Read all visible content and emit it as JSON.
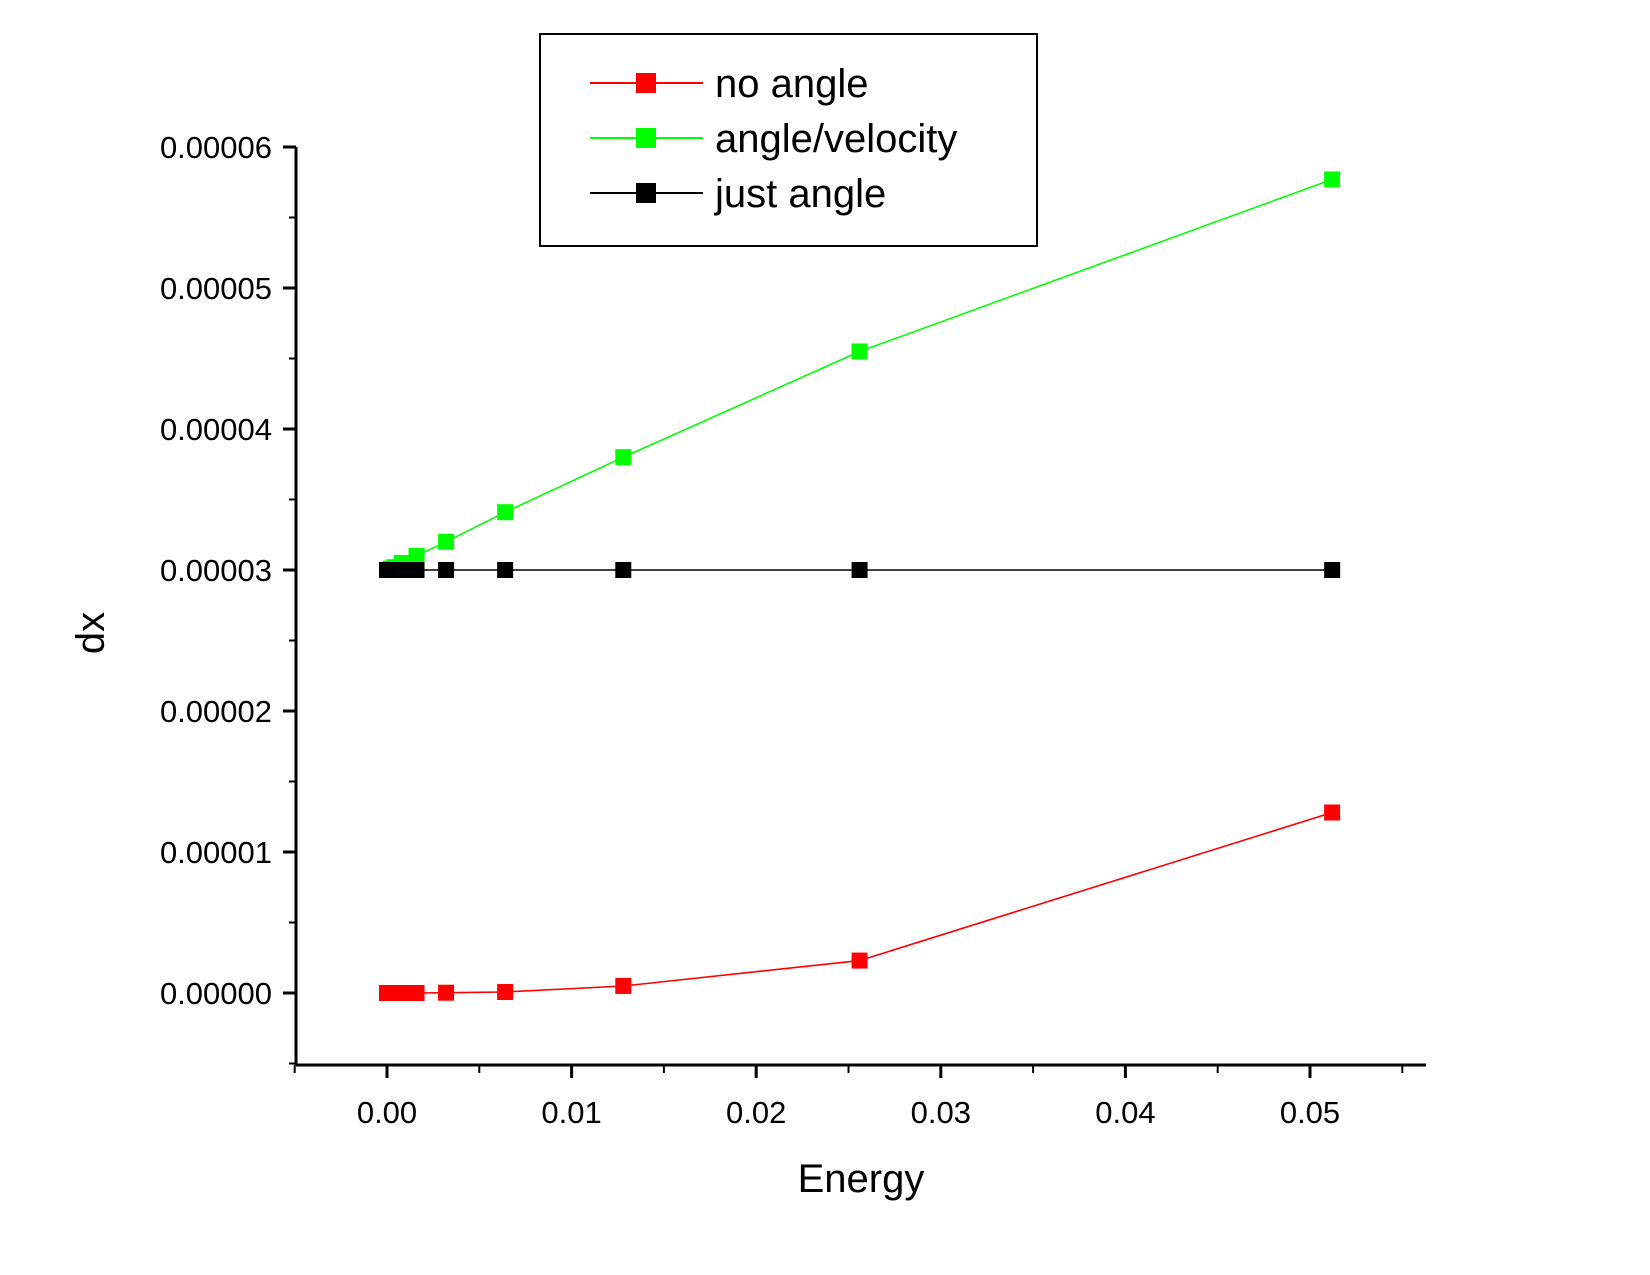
{
  "chart_data": {
    "type": "line",
    "title": "",
    "xlabel": "Energy",
    "ylabel": "dx",
    "xlim": [
      -0.005,
      0.057
    ],
    "ylim": [
      -5e-06,
      6e-05
    ],
    "x_ticks": [
      "0.00",
      "0.01",
      "0.02",
      "0.03",
      "0.04",
      "0.05"
    ],
    "y_ticks": [
      "0.00000",
      "0.00001",
      "0.00002",
      "0.00003",
      "0.00004",
      "0.00005",
      "0.00006"
    ],
    "legend_position": "top-center",
    "grid": false,
    "series": [
      {
        "name": "no angle",
        "color": "#ff0000",
        "marker": "square",
        "x": [
          0.0,
          0.0002,
          0.0004,
          0.0008,
          0.0016,
          0.0032,
          0.0064,
          0.0128,
          0.0256,
          0.0512
        ],
        "y": [
          0.0,
          0.0,
          0.0,
          0.0,
          0.0,
          2e-08,
          7e-08,
          5e-07,
          2.3e-06,
          1.28e-05
        ]
      },
      {
        "name": "angle/velocity",
        "color": "#00ff00",
        "marker": "square",
        "x": [
          0.0,
          0.0002,
          0.0004,
          0.0008,
          0.0016,
          0.0032,
          0.0064,
          0.0128,
          0.0256,
          0.0512
        ],
        "y": [
          3e-05,
          3.01e-05,
          3.02e-05,
          3.05e-05,
          3.1e-05,
          3.2e-05,
          3.41e-05,
          3.8e-05,
          4.55e-05,
          5.77e-05
        ]
      },
      {
        "name": "just angle",
        "color": "#000000",
        "marker": "square",
        "x": [
          0.0,
          0.0002,
          0.0004,
          0.0008,
          0.0016,
          0.0032,
          0.0064,
          0.0128,
          0.0256,
          0.0512
        ],
        "y": [
          3e-05,
          3e-05,
          3e-05,
          3e-05,
          3e-05,
          3e-05,
          3e-05,
          3e-05,
          3e-05,
          3e-05
        ]
      }
    ]
  }
}
